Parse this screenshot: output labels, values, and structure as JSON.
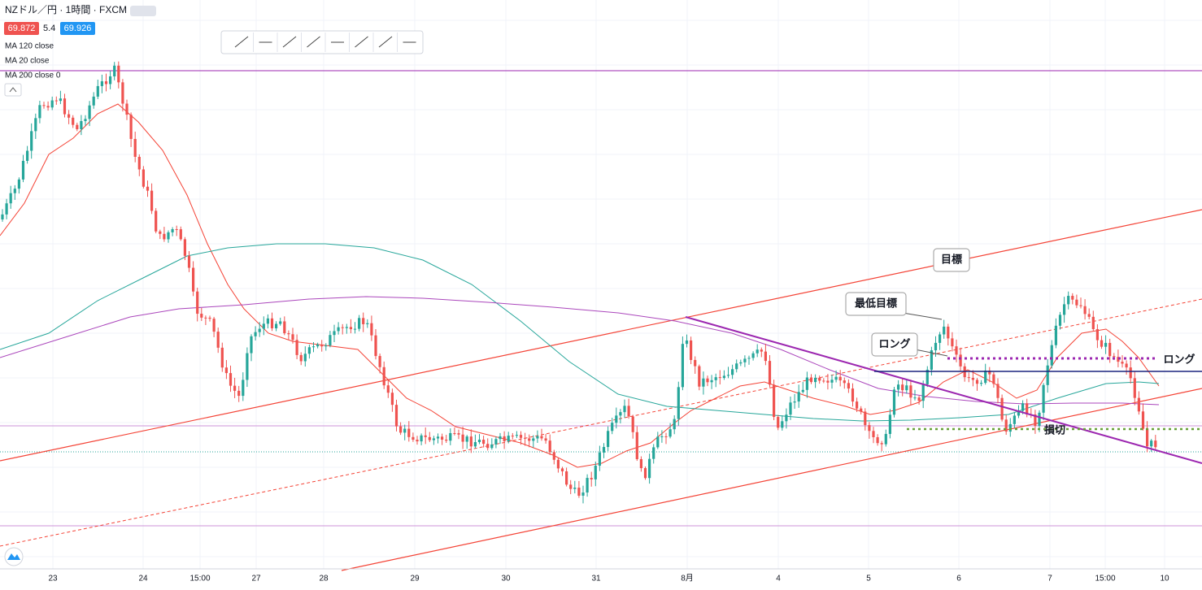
{
  "header": {
    "title": "NZドル／円 · 1時間 · FXCM",
    "bid": "69.872",
    "spread": "5.4",
    "ask": "69.926"
  },
  "indicators": [
    "MA 120 close",
    "MA 20 close",
    "MA 200 close 0"
  ],
  "x_axis": [
    "23",
    "24",
    "15:00",
    "27",
    "28",
    "29",
    "30",
    "31",
    "8月",
    "4",
    "5",
    "6",
    "7",
    "15:00",
    "10"
  ],
  "annotations": {
    "target": "目標",
    "min_target": "最低目標",
    "long_note": "ロング",
    "long_line": "ロング",
    "stop": "損切"
  }
}
